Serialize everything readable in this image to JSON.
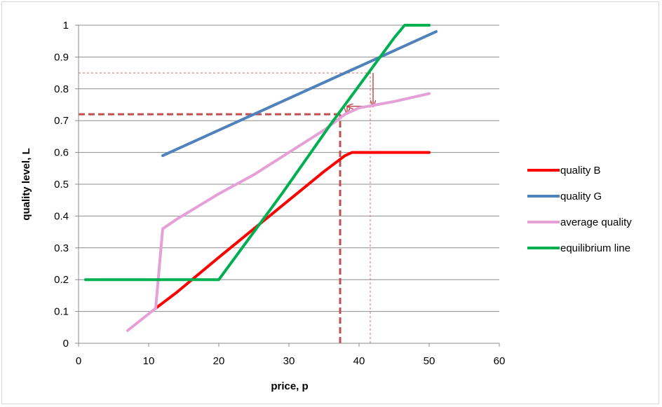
{
  "chart_data": {
    "type": "line",
    "xlabel": "price, p",
    "ylabel": "quality level, L",
    "xlim": [
      0,
      60
    ],
    "ylim": [
      0,
      1
    ],
    "xticks": [
      0,
      10,
      20,
      30,
      40,
      50,
      60
    ],
    "yticks": [
      0,
      0.1,
      0.2,
      0.3,
      0.4,
      0.5,
      0.6,
      0.7,
      0.8,
      0.9,
      1
    ],
    "ytick_labels": [
      "0",
      "0.1",
      "0.2",
      "0.3",
      "0.4",
      "0.5",
      "0.6",
      "0.7",
      "0.8",
      "0.9",
      "1"
    ],
    "grid": "horizontal",
    "legend_position": "right",
    "series": [
      {
        "name": "quality B",
        "color": "#ff0000",
        "points": [
          [
            11,
            0.11
          ],
          [
            14,
            0.16
          ],
          [
            20,
            0.27
          ],
          [
            25,
            0.36
          ],
          [
            30,
            0.45
          ],
          [
            35,
            0.54
          ],
          [
            38,
            0.59
          ],
          [
            39,
            0.6
          ],
          [
            50,
            0.6
          ]
        ]
      },
      {
        "name": "quality G",
        "color": "#4f81bd",
        "points": [
          [
            12,
            0.59
          ],
          [
            20,
            0.67
          ],
          [
            30,
            0.77
          ],
          [
            40,
            0.87
          ],
          [
            51,
            0.98
          ]
        ]
      },
      {
        "name": "average quality",
        "color": "#e6a0d8",
        "points": [
          [
            7,
            0.04
          ],
          [
            11,
            0.11
          ],
          [
            12,
            0.36
          ],
          [
            14,
            0.39
          ],
          [
            17,
            0.43
          ],
          [
            20,
            0.47
          ],
          [
            25,
            0.53
          ],
          [
            30,
            0.6
          ],
          [
            35,
            0.67
          ],
          [
            38,
            0.72
          ],
          [
            40,
            0.74
          ],
          [
            45,
            0.76
          ],
          [
            50,
            0.785
          ]
        ]
      },
      {
        "name": "equilibrium line",
        "color": "#00b050",
        "points": [
          [
            1,
            0.2
          ],
          [
            20,
            0.2
          ],
          [
            29,
            0.47
          ],
          [
            36,
            0.69
          ],
          [
            41,
            0.84
          ],
          [
            45,
            0.96
          ],
          [
            46.5,
            1.0
          ],
          [
            50,
            1.0
          ]
        ]
      }
    ],
    "annotations": [
      {
        "kind": "dashed-line",
        "style": "thick",
        "color": "#c0504d",
        "points": [
          [
            0,
            0.72
          ],
          [
            37.5,
            0.72
          ]
        ]
      },
      {
        "kind": "dashed-line",
        "style": "thick",
        "color": "#c0504d",
        "points": [
          [
            37.3,
            0
          ],
          [
            37.3,
            0.72
          ]
        ]
      },
      {
        "kind": "dashed-line",
        "style": "thin",
        "color": "#e06666",
        "points": [
          [
            0,
            0.85
          ],
          [
            42,
            0.85
          ]
        ]
      },
      {
        "kind": "dashed-line",
        "style": "thin",
        "color": "#e06666",
        "points": [
          [
            41.6,
            0
          ],
          [
            41.6,
            0.85
          ]
        ]
      },
      {
        "kind": "arrow",
        "color": "#c0504d",
        "points": [
          [
            42,
            0.85
          ],
          [
            42,
            0.745
          ]
        ]
      },
      {
        "kind": "arrow",
        "color": "#c0504d",
        "points": [
          [
            42,
            0.745
          ],
          [
            38.3,
            0.745
          ]
        ]
      },
      {
        "kind": "arrow",
        "color": "#c0504d",
        "points": [
          [
            38.3,
            0.745
          ],
          [
            38.3,
            0.72
          ]
        ]
      }
    ]
  }
}
